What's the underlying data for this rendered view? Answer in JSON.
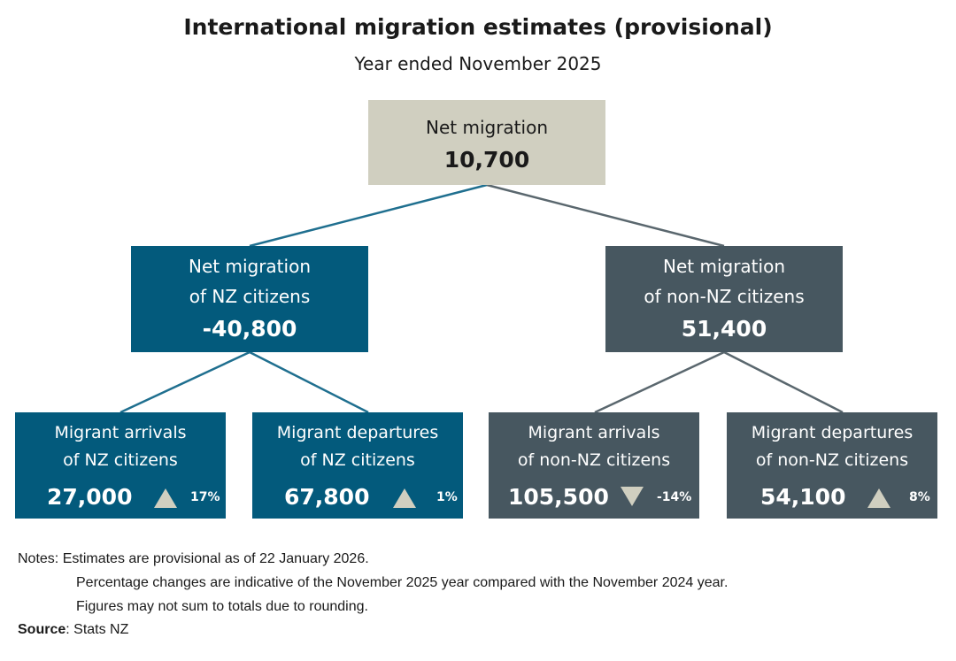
{
  "title": "International migration estimates (provisional)",
  "subtitle": "Year ended November 2025",
  "colors": {
    "top_fill": "#d0cfc0",
    "citizens_fill": "#035a7c",
    "non_citizens_fill": "#475760",
    "connector_teal": "#1f6f8f",
    "connector_slate": "#5a676e"
  },
  "tree": {
    "root": {
      "label": "Net migration",
      "value": "10,700"
    },
    "nz": {
      "label_1": "Net migration",
      "label_2": "of NZ citizens",
      "value": "-40,800"
    },
    "non_nz": {
      "label_1": "Net migration",
      "label_2": "of non-NZ citizens",
      "value": "51,400"
    },
    "nz_arrivals": {
      "label_1": "Migrant arrivals",
      "label_2": "of NZ citizens",
      "value": "27,000",
      "direction": "up",
      "change": "17%"
    },
    "nz_departures": {
      "label_1": "Migrant departures",
      "label_2": "of NZ citizens",
      "value": "67,800",
      "direction": "up",
      "change": "1%"
    },
    "non_nz_arrivals": {
      "label_1": "Migrant arrivals",
      "label_2": "of non-NZ citizens",
      "value": "105,500",
      "direction": "down",
      "change": "-14%"
    },
    "non_nz_departures": {
      "label_1": "Migrant departures",
      "label_2": "of non-NZ citizens",
      "value": "54,100",
      "direction": "up",
      "change": "8%"
    }
  },
  "notes": {
    "heading": "Notes:",
    "line_1": "Estimates are provisional as of 22 January 2026.",
    "line_2": "Percentage changes are indicative of the November 2025 year compared with the November 2024 year.",
    "line_3": "Figures may not sum to totals due to rounding."
  },
  "source": {
    "label": "Source",
    "text": ": Stats NZ"
  }
}
